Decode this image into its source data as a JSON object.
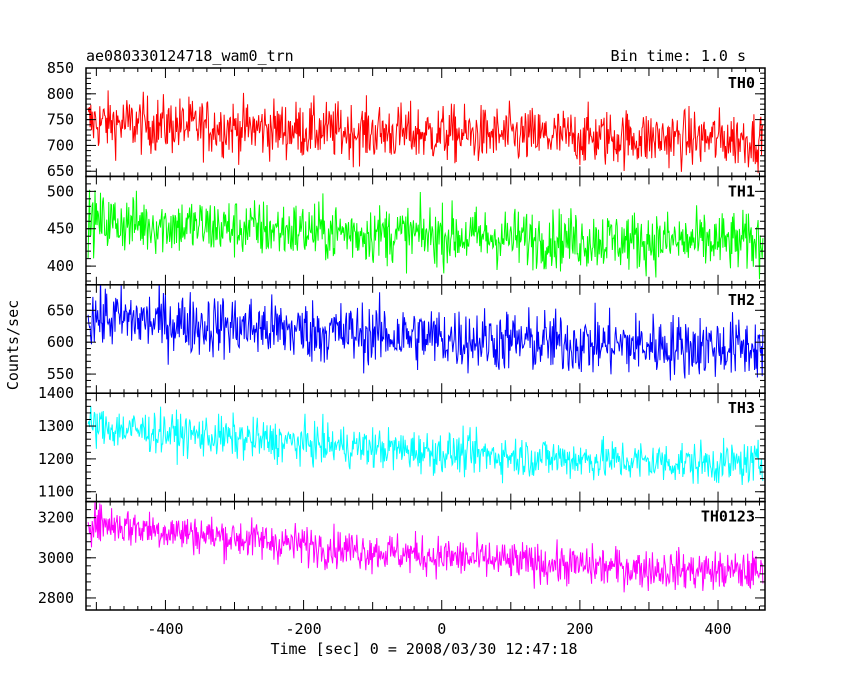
{
  "header": {
    "title": "ae080330124718_wam0_trn",
    "bin_time": "Bin time: 1.0 s"
  },
  "chart_data": {
    "type": "line",
    "x_range": [
      -512,
      465
    ],
    "xlim": [
      -515,
      468
    ],
    "xlabel": "Time [sec] 0 = 2008/03/30 12:47:18",
    "ylabel": "Counts/sec",
    "x_ticks": [
      -400,
      -200,
      0,
      200,
      400
    ],
    "panels": [
      {
        "name": "TH0",
        "color": "#ff0000",
        "ylim": [
          640,
          850
        ],
        "yticks": [
          650,
          700,
          750,
          800,
          850
        ],
        "trend_start": 745,
        "trend_end": 712,
        "noise": 28
      },
      {
        "name": "TH1",
        "color": "#00ff00",
        "ylim": [
          375,
          520
        ],
        "yticks": [
          400,
          450,
          500
        ],
        "trend_start": 460,
        "trend_end": 432,
        "noise": 20
      },
      {
        "name": "TH2",
        "color": "#0000ff",
        "ylim": [
          520,
          690
        ],
        "yticks": [
          550,
          600,
          650
        ],
        "trend_start": 640,
        "trend_end": 592,
        "noise": 25
      },
      {
        "name": "TH3",
        "color": "#00ffff",
        "ylim": [
          1070,
          1400
        ],
        "yticks": [
          1100,
          1200,
          1300,
          1400
        ],
        "trend_start": 1300,
        "trend_end": 1185,
        "noise": 32
      },
      {
        "name": "TH0123",
        "color": "#ff00ff",
        "ylim": [
          2740,
          3280
        ],
        "yticks": [
          2800,
          3000,
          3200
        ],
        "trend_start": 3180,
        "trend_end": 2930,
        "noise": 50
      }
    ]
  }
}
